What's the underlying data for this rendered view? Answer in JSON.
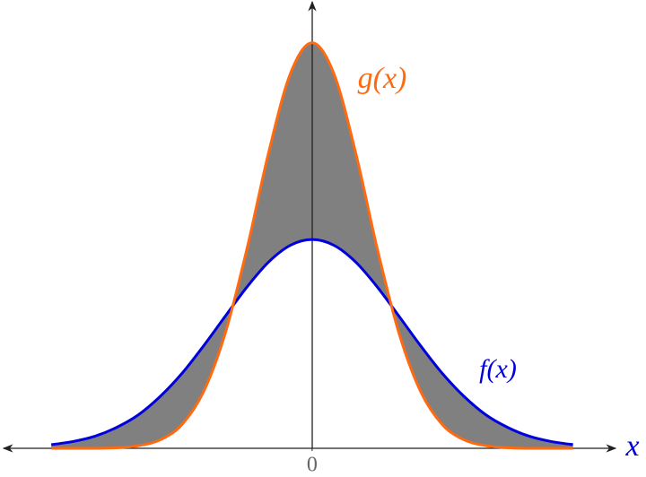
{
  "chart_data": {
    "type": "line",
    "x": [
      -3,
      -2.75,
      -2.5,
      -2.25,
      -2,
      -1.75,
      -1.5,
      -1.25,
      -1,
      -0.75,
      -0.5,
      -0.25,
      0,
      0.25,
      0.5,
      0.75,
      1,
      1.25,
      1.5,
      1.75,
      2,
      2.25,
      2.5,
      2.75,
      3
    ],
    "series": [
      {
        "name": "f(x)",
        "color": "#0000dd",
        "values": [
          0.007,
          0.013,
          0.023,
          0.04,
          0.064,
          0.099,
          0.143,
          0.196,
          0.253,
          0.309,
          0.357,
          0.389,
          0.4,
          0.389,
          0.357,
          0.309,
          0.253,
          0.196,
          0.143,
          0.099,
          0.064,
          0.04,
          0.023,
          0.013,
          0.007
        ]
      },
      {
        "name": "g(x)",
        "color": "#ff6a10",
        "values": [
          0,
          0,
          0,
          0.001,
          0.005,
          0.016,
          0.045,
          0.108,
          0.22,
          0.382,
          0.567,
          0.718,
          0.777,
          0.718,
          0.567,
          0.382,
          0.22,
          0.108,
          0.045,
          0.016,
          0.005,
          0.001,
          0,
          0,
          0
        ]
      }
    ],
    "fill_between": "#808080",
    "x_label": "x",
    "xlim": [
      -3.59,
      3.84
    ],
    "ylim": [
      0,
      0.859
    ],
    "xticks": [
      0
    ]
  }
}
